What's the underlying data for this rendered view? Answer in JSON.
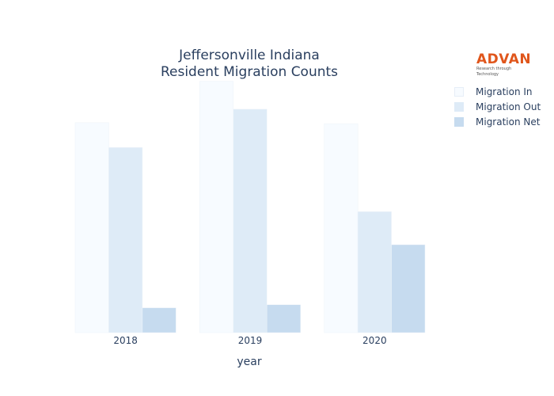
{
  "chart_data": {
    "type": "bar",
    "title_lines": [
      "Jeffersonville Indiana",
      "Resident Migration Counts"
    ],
    "xlabel": "year",
    "categories": [
      "2018",
      "2019",
      "2020"
    ],
    "series": [
      {
        "name": "Migration In",
        "values": [
          2030,
          2430,
          2020
        ],
        "color": "#f7fbff"
      },
      {
        "name": "Migration Out",
        "values": [
          1790,
          2160,
          1170
        ],
        "color": "#deebf7"
      },
      {
        "name": "Migration Net",
        "values": [
          240,
          270,
          850
        ],
        "color": "#c6dbef"
      }
    ],
    "ylim": [
      0,
      2450
    ],
    "yaxis_visible": false,
    "grid": false,
    "legend_position": "top-right"
  },
  "logo": {
    "text": "ADVAN",
    "tagline": "Research through Technology",
    "color": "#e0561c"
  }
}
